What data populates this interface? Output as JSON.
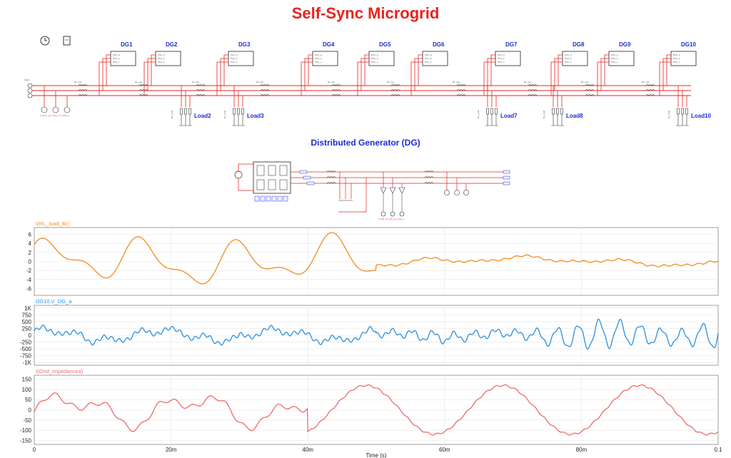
{
  "title": "Self-Sync Microgrid",
  "dg_section_title": "Distributed Generator (DG)",
  "dg_labels": [
    "DG1",
    "DG2",
    "DG3",
    "DG4",
    "DG5",
    "DG6",
    "DG7",
    "DG8",
    "DG9",
    "DG10"
  ],
  "dg_port_labels": [
    "PCC_a",
    "PCC_b",
    "PCC_c"
  ],
  "load_labels": [
    "Load2",
    "Load3",
    "Load7",
    "Load8",
    "Load10"
  ],
  "colors": {
    "wire": "#e8231e",
    "label_blue": "#1f2bd6",
    "title_red": "#e8231e",
    "trace1": "#f28c1e",
    "trace2": "#2a8fe0",
    "trace3": "#ee6b6b",
    "plot_border": "#888888"
  },
  "icons": [
    "clock-icon",
    "document-icon"
  ],
  "chart_data": [
    {
      "type": "line",
      "series": [
        {
          "name": "I(RL_load_8c)",
          "color": "#f28c1e"
        }
      ],
      "y_ticks": [
        "6",
        "4",
        "2",
        "0",
        "-2",
        "-4",
        "-6"
      ],
      "ylim": [
        -7.5,
        7.5
      ],
      "xlim": [
        0,
        0.1
      ],
      "x_ticks": [
        "0",
        "20m",
        "40m",
        "60m",
        "80m",
        "0.1"
      ],
      "grid": true
    },
    {
      "type": "line",
      "series": [
        {
          "name": "DG10.V_DG_a",
          "color": "#2a8fe0"
        }
      ],
      "y_ticks": [
        "1K",
        "750",
        "500",
        "250",
        "0",
        "-250",
        "-500",
        "-750",
        "-1K"
      ],
      "ylim": [
        -1100,
        1100
      ],
      "xlim": [
        0,
        0.1
      ],
      "x_ticks": [
        "0",
        "20m",
        "40m",
        "60m",
        "80m",
        "0.1"
      ],
      "grid": true
    },
    {
      "type": "line",
      "series": [
        {
          "name": "I(Grid_impedancea)",
          "color": "#ee6b6b"
        }
      ],
      "y_ticks": [
        "150",
        "100",
        "50",
        "0",
        "-50",
        "-100",
        "-150"
      ],
      "ylim": [
        -170,
        170
      ],
      "xlim": [
        0,
        0.1
      ],
      "x_ticks": [
        "0",
        "20m",
        "40m",
        "60m",
        "80m",
        "0.1"
      ],
      "xlabel": "Time (s)",
      "grid": true
    }
  ]
}
